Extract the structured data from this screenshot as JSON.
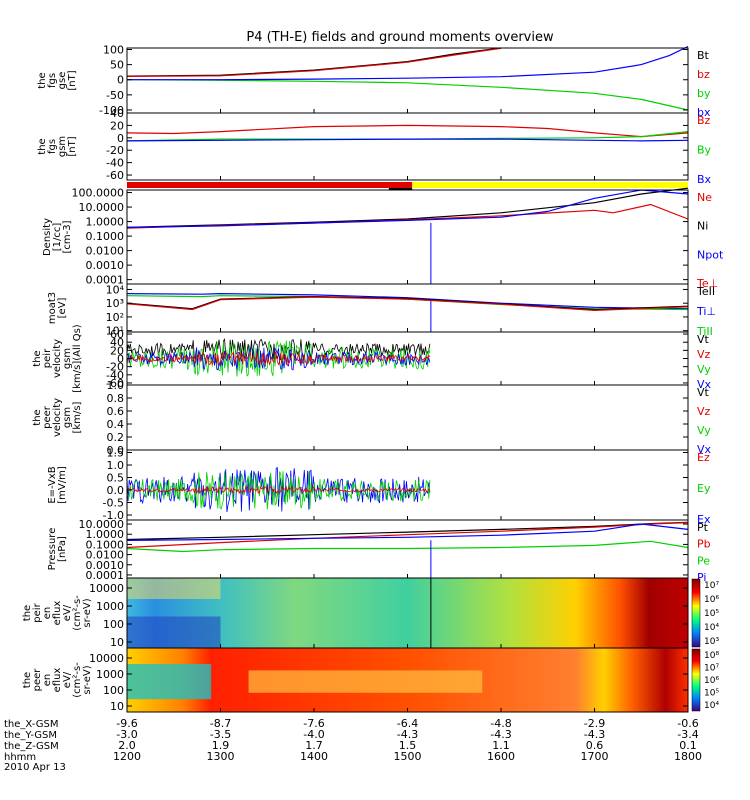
{
  "title": "P4 (TH-E) fields and ground moments overview",
  "colors": {
    "black": "#000000",
    "red": "#e00000",
    "green": "#00d000",
    "blue": "#0000ff",
    "yellow": "#ffff00"
  },
  "chart_data": {
    "type": "line",
    "x_range": [
      1200,
      1800
    ],
    "panels": [
      {
        "id": "fgs-gse",
        "ylabel": [
          "the",
          "fgs",
          "gse",
          "[nT]"
        ],
        "ticks": [
          "100",
          "50",
          "0",
          "-50",
          "-100"
        ],
        "tick_values": [
          100,
          50,
          0,
          -50,
          -100
        ],
        "ylim": [
          -110,
          105
        ],
        "legend": [
          {
            "t": "Bt",
            "c": "black"
          },
          {
            "t": "bz",
            "c": "red"
          },
          {
            "t": "by",
            "c": "green"
          },
          {
            "t": "bx",
            "c": "blue"
          }
        ],
        "series": [
          {
            "name": "Bt",
            "color": "black",
            "x": [
              1200,
              1300,
              1400,
              1500,
              1550,
              1600
            ],
            "y": [
              12,
              15,
              32,
              60,
              85,
              105
            ]
          },
          {
            "name": "bz",
            "color": "red",
            "x": [
              1200,
              1300,
              1400,
              1500,
              1550,
              1600
            ],
            "y": [
              11,
              13,
              30,
              58,
              82,
              104
            ]
          },
          {
            "name": "by",
            "color": "green",
            "x": [
              1200,
              1300,
              1400,
              1500,
              1600,
              1700,
              1750,
              1800
            ],
            "y": [
              0,
              -2,
              -5,
              -10,
              -25,
              -45,
              -65,
              -100
            ]
          },
          {
            "name": "bx",
            "color": "blue",
            "x": [
              1200,
              1300,
              1400,
              1500,
              1600,
              1700,
              1750,
              1780,
              1800
            ],
            "y": [
              0,
              0,
              2,
              5,
              10,
              25,
              50,
              80,
              110
            ]
          }
        ]
      },
      {
        "id": "fgs-gsm",
        "ylabel": [
          "the",
          "fgs",
          "gsm",
          "[nT]"
        ],
        "ticks": [
          "40",
          "20",
          "0",
          "-20",
          "-40",
          "-60"
        ],
        "tick_values": [
          40,
          20,
          0,
          -20,
          -40,
          -60
        ],
        "ylim": [
          -68,
          40
        ],
        "legend": [
          {
            "t": "Bz",
            "c": "red"
          },
          {
            "t": "By",
            "c": "green"
          },
          {
            "t": "Bx",
            "c": "blue"
          }
        ],
        "series": [
          {
            "name": "Bz",
            "color": "red",
            "x": [
              1200,
              1250,
              1300,
              1400,
              1500,
              1600,
              1650,
              1700,
              1750,
              1800
            ],
            "y": [
              8,
              7,
              10,
              18,
              20,
              18,
              15,
              8,
              2,
              8
            ]
          },
          {
            "name": "By",
            "color": "green",
            "x": [
              1200,
              1300,
              1400,
              1500,
              1600,
              1700,
              1750,
              1800
            ],
            "y": [
              -5,
              -2,
              -2,
              -2,
              -1,
              0,
              2,
              10
            ]
          },
          {
            "name": "Bx",
            "color": "blue",
            "x": [
              1200,
              1300,
              1400,
              1500,
              1600,
              1700,
              1750,
              1800
            ],
            "y": [
              -5,
              -4,
              -3,
              -2,
              -2,
              -4,
              -5,
              -4
            ]
          }
        ]
      },
      {
        "id": "density",
        "ylabel": [
          "Density",
          "[1/cc]",
          "[cm-3]"
        ],
        "ticks": [
          "100.0000",
          "10.0000",
          "1.0000",
          "0.1000",
          "0.0100",
          "0.0010",
          "0.0001"
        ],
        "tick_values": [
          100,
          10,
          1,
          0.1,
          0.01,
          0.001,
          0.0001
        ],
        "log": true,
        "ylim": [
          5e-05,
          150
        ],
        "legend": [
          {
            "t": "Ne",
            "c": "red"
          },
          {
            "t": "Ni",
            "c": "black"
          },
          {
            "t": "Npot",
            "c": "blue"
          },
          {
            "t": "Te⊥",
            "c": "red"
          }
        ],
        "series": [
          {
            "name": "Ni",
            "color": "black",
            "x": [
              1200,
              1300,
              1400,
              1500,
              1600,
              1700,
              1750,
              1800
            ],
            "y": [
              0.4,
              0.6,
              0.9,
              1.5,
              4,
              20,
              80,
              200
            ]
          },
          {
            "name": "Ne",
            "color": "red",
            "x": [
              1200,
              1300,
              1400,
              1500,
              1600,
              1700,
              1720,
              1760,
              1800
            ],
            "y": [
              0.35,
              0.55,
              0.8,
              1.3,
              2.5,
              6,
              4,
              15,
              1.5
            ]
          },
          {
            "name": "Npot",
            "color": "blue",
            "x": [
              1200,
              1300,
              1400,
              1500,
              1600,
              1650,
              1700,
              1750,
              1800
            ],
            "y": [
              0.4,
              0.5,
              0.8,
              1.2,
              2,
              5,
              40,
              150,
              80
            ]
          }
        ]
      },
      {
        "id": "temperature",
        "ylabel": [
          "moat3",
          "[eV]"
        ],
        "ticks": [
          "10⁴",
          "10³",
          "10²",
          "10¹"
        ],
        "tick_values": [
          10000,
          1000,
          100,
          10
        ],
        "log": true,
        "ylim": [
          8,
          25000
        ],
        "legend": [
          {
            "t": "TeII",
            "c": "black"
          },
          {
            "t": "Ti⊥",
            "c": "blue"
          },
          {
            "t": "TiII",
            "c": "green"
          }
        ],
        "series": [
          {
            "name": "Ti⊥",
            "color": "blue",
            "x": [
              1200,
              1280,
              1300,
              1400,
              1500,
              1600,
              1700,
              1800
            ],
            "y": [
              5000,
              4500,
              5000,
              4000,
              2500,
              1000,
              500,
              400
            ]
          },
          {
            "name": "TiII",
            "color": "green",
            "x": [
              1200,
              1280,
              1300,
              1400,
              1500,
              1600,
              1700,
              1800
            ],
            "y": [
              3500,
              3000,
              3500,
              3000,
              2000,
              800,
              400,
              350
            ]
          },
          {
            "name": "TeII",
            "color": "black",
            "x": [
              1200,
              1270,
              1300,
              1400,
              1500,
              1600,
              1700,
              1800
            ],
            "y": [
              1000,
              400,
              2000,
              3000,
              2200,
              900,
              350,
              600
            ]
          },
          {
            "name": "Te⊥",
            "color": "red",
            "x": [
              1200,
              1270,
              1300,
              1400,
              1500,
              1600,
              1700,
              1800
            ],
            "y": [
              900,
              350,
              1800,
              2800,
              2000,
              850,
              300,
              550
            ]
          }
        ]
      },
      {
        "id": "peir-velocity",
        "ylabel": [
          "the",
          "peir",
          "velocity",
          "gsm",
          "[km/s](All Qs)"
        ],
        "ticks": [
          "60",
          "40",
          "20",
          "0",
          "-20",
          "-40",
          "-60"
        ],
        "tick_values": [
          60,
          40,
          20,
          0,
          -20,
          -40,
          -60
        ],
        "ylim": [
          -65,
          65
        ],
        "legend": [
          {
            "t": "Vt",
            "c": "black"
          },
          {
            "t": "Vz",
            "c": "red"
          },
          {
            "t": "Vy",
            "c": "green"
          },
          {
            "t": "Vx",
            "c": "blue"
          }
        ],
        "noise": [
          {
            "name": "Vt",
            "color": "black",
            "base": 22,
            "amp": 20
          },
          {
            "name": "Vy",
            "color": "green",
            "base": 0,
            "amp": 35
          },
          {
            "name": "Vx",
            "color": "blue",
            "base": 0,
            "amp": 22
          },
          {
            "name": "Vz",
            "color": "red",
            "base": 0,
            "amp": 12
          }
        ],
        "x_end": 1525
      },
      {
        "id": "peer-velocity",
        "ylabel": [
          "the",
          "peer",
          "velocity",
          "gsm",
          "[km/s]"
        ],
        "ticks": [
          "1.0",
          "0.8",
          "0.6",
          "0.4",
          "0.2",
          "0.0"
        ],
        "tick_values": [
          1,
          0.8,
          0.6,
          0.4,
          0.2,
          0
        ],
        "ylim": [
          0,
          1
        ],
        "legend": [
          {
            "t": "Vt",
            "c": "black"
          },
          {
            "t": "Vz",
            "c": "red"
          },
          {
            "t": "Vy",
            "c": "green"
          },
          {
            "t": "Vx",
            "c": "blue"
          }
        ],
        "series": []
      },
      {
        "id": "efield",
        "ylabel": [
          "E=-VxB",
          "[mV/m]"
        ],
        "ticks": [
          "1.5",
          "1.0",
          "0.5",
          "0.0",
          "-0.5",
          "-1.0"
        ],
        "tick_values": [
          1.5,
          1,
          0.5,
          0,
          -0.5,
          -1
        ],
        "ylim": [
          -1.2,
          1.6
        ],
        "legend": [
          {
            "t": "Ez",
            "c": "red"
          },
          {
            "t": "Ey",
            "c": "green"
          },
          {
            "t": "Ex",
            "c": "blue"
          }
        ],
        "noise": [
          {
            "name": "Ex",
            "color": "blue",
            "base": 0,
            "amp": 0.7
          },
          {
            "name": "Ey",
            "color": "green",
            "base": 0,
            "amp": 0.6
          },
          {
            "name": "Ez",
            "color": "red",
            "base": 0,
            "amp": 0.1
          }
        ],
        "x_end": 1525
      },
      {
        "id": "pressure",
        "ylabel": [
          "Pressure",
          "[nPa]"
        ],
        "ticks": [
          "10.0000",
          "1.0000",
          "0.1000",
          "0.0100",
          "0.0010",
          "0.0001"
        ],
        "tick_values": [
          10,
          1,
          0.1,
          0.01,
          0.001,
          0.0001
        ],
        "log": true,
        "ylim": [
          5e-05,
          25
        ],
        "legend": [
          {
            "t": "Pt",
            "c": "black"
          },
          {
            "t": "Pb",
            "c": "red"
          },
          {
            "t": "Pe",
            "c": "green"
          },
          {
            "t": "Pi",
            "c": "blue"
          }
        ],
        "series": [
          {
            "name": "Pt",
            "color": "black",
            "x": [
              1200,
              1300,
              1400,
              1500,
              1600,
              1700,
              1760,
              1800
            ],
            "y": [
              0.3,
              0.5,
              0.9,
              1.6,
              3,
              6,
              11,
              15
            ]
          },
          {
            "name": "Pb",
            "color": "red",
            "x": [
              1200,
              1300,
              1400,
              1500,
              1600,
              1700,
              1760,
              1800
            ],
            "y": [
              0.05,
              0.15,
              0.4,
              0.9,
              2,
              5,
              10,
              14
            ]
          },
          {
            "name": "Pi",
            "color": "blue",
            "x": [
              1200,
              1300,
              1400,
              1500,
              1600,
              1700,
              1750,
              1800
            ],
            "y": [
              0.25,
              0.3,
              0.4,
              0.5,
              0.8,
              2,
              10,
              3
            ]
          },
          {
            "name": "Pe",
            "color": "green",
            "x": [
              1200,
              1260,
              1300,
              1400,
              1500,
              1600,
              1700,
              1760,
              1800
            ],
            "y": [
              0.04,
              0.02,
              0.03,
              0.04,
              0.04,
              0.05,
              0.08,
              0.2,
              0.05
            ]
          }
        ]
      },
      {
        "id": "peir-eflux",
        "ylabel": [
          "the",
          "peir",
          "en",
          "eflux",
          "eV/",
          "(cm²-s-",
          "sr-eV)"
        ],
        "ticks": [
          "10000",
          "1000",
          "100",
          "10"
        ],
        "tick_values": [
          10000,
          1000,
          100,
          10
        ],
        "spectrogram": "ion",
        "colorbar": [
          "10⁷",
          "10⁶",
          "10⁵",
          "10⁴",
          "10³"
        ]
      },
      {
        "id": "peer-eflux",
        "ylabel": [
          "the",
          "peer",
          "en",
          "eflux",
          "eV/",
          "(cm²-s-",
          "sr-eV)"
        ],
        "ticks": [
          "10000",
          "1000",
          "100",
          "10"
        ],
        "tick_values": [
          10000,
          1000,
          100,
          10
        ],
        "spectrogram": "electron",
        "colorbar": [
          "10⁸",
          "10⁷",
          "10⁶",
          "10⁵",
          "10⁴"
        ]
      }
    ],
    "mode_bar": {
      "colors": [
        "red",
        "yellow"
      ],
      "switch_x": 1505
    },
    "x_axis": {
      "rows": [
        {
          "label": "the_X-GSM",
          "values": [
            "-9.6",
            "-8.7",
            "-7.6",
            "-6.4",
            "-4.8",
            "-2.9",
            "-0.6"
          ]
        },
        {
          "label": "the_Y-GSM",
          "values": [
            "-3.0",
            "-3.5",
            "-4.0",
            "-4.3",
            "-4.3",
            "-4.3",
            "-3.4"
          ]
        },
        {
          "label": "the_Z-GSM",
          "values": [
            "2.0",
            "1.9",
            "1.7",
            "1.5",
            "1.1",
            "0.6",
            "0.1"
          ]
        },
        {
          "label": "hhmm",
          "values": [
            "1200",
            "1300",
            "1400",
            "1500",
            "1600",
            "1700",
            "1800"
          ]
        }
      ],
      "date": "2010 Apr 13"
    }
  }
}
